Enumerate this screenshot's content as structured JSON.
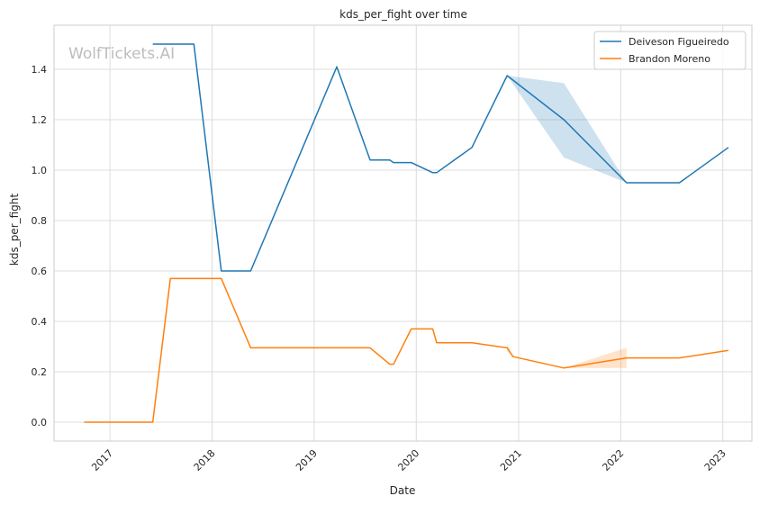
{
  "chart_data": {
    "type": "line",
    "title": "kds_per_fight over time",
    "xlabel": "Date",
    "ylabel": "kds_per_fight",
    "watermark": "WolfTickets.AI",
    "x_ticks": [
      "2017",
      "2018",
      "2019",
      "2020",
      "2021",
      "2022",
      "2023"
    ],
    "y_ticks": [
      "0.0",
      "0.2",
      "0.4",
      "0.6",
      "0.8",
      "1.0",
      "1.2",
      "1.4"
    ],
    "xlim": [
      "2016-06-15",
      "2023-04-15"
    ],
    "ylim": [
      -0.075,
      1.575
    ],
    "grid": true,
    "legend_position": "top-right",
    "series": [
      {
        "name": "Deiveson Figueiredo",
        "color": "#1f77b4",
        "points": [
          [
            "2017-06-03",
            1.5
          ],
          [
            "2017-10-28",
            1.5
          ],
          [
            "2018-02-03",
            0.6
          ],
          [
            "2018-05-19",
            0.6
          ],
          [
            "2019-03-23",
            1.41
          ],
          [
            "2019-07-20",
            1.04
          ],
          [
            "2019-08-31",
            1.04
          ],
          [
            "2019-09-28",
            1.04
          ],
          [
            "2019-10-12",
            1.03
          ],
          [
            "2019-12-14",
            1.03
          ],
          [
            "2020-02-29",
            0.99
          ],
          [
            "2020-03-14",
            0.99
          ],
          [
            "2020-07-18",
            1.09
          ],
          [
            "2020-11-21",
            1.375
          ],
          [
            "2021-06-12",
            1.2
          ],
          [
            "2022-01-22",
            0.95
          ],
          [
            "2022-07-30",
            0.95
          ],
          [
            "2023-01-21",
            1.09
          ]
        ],
        "band": [
          [
            "2020-11-21",
            1.375,
            1.375
          ],
          [
            "2021-06-12",
            1.05,
            1.345
          ],
          [
            "2022-01-22",
            0.95,
            0.95
          ]
        ]
      },
      {
        "name": "Brandon Moreno",
        "color": "#ff7f0e",
        "points": [
          [
            "2016-10-01",
            0.0
          ],
          [
            "2017-06-03",
            0.0
          ],
          [
            "2017-08-05",
            0.57
          ],
          [
            "2018-02-03",
            0.57
          ],
          [
            "2018-05-19",
            0.295
          ],
          [
            "2019-07-20",
            0.295
          ],
          [
            "2019-09-28",
            0.23
          ],
          [
            "2019-10-12",
            0.23
          ],
          [
            "2019-12-14",
            0.37
          ],
          [
            "2020-02-29",
            0.37
          ],
          [
            "2020-03-14",
            0.315
          ],
          [
            "2020-07-18",
            0.315
          ],
          [
            "2020-11-21",
            0.295
          ],
          [
            "2020-12-12",
            0.26
          ],
          [
            "2021-06-12",
            0.215
          ],
          [
            "2022-01-22",
            0.255
          ],
          [
            "2022-07-30",
            0.255
          ],
          [
            "2023-01-21",
            0.285
          ]
        ],
        "band": [
          [
            "2020-11-21",
            0.28,
            0.31
          ],
          [
            "2020-12-12",
            0.26,
            0.26
          ],
          [
            "2021-06-12",
            0.215,
            0.215
          ],
          [
            "2022-01-22",
            0.215,
            0.295
          ]
        ]
      }
    ]
  }
}
